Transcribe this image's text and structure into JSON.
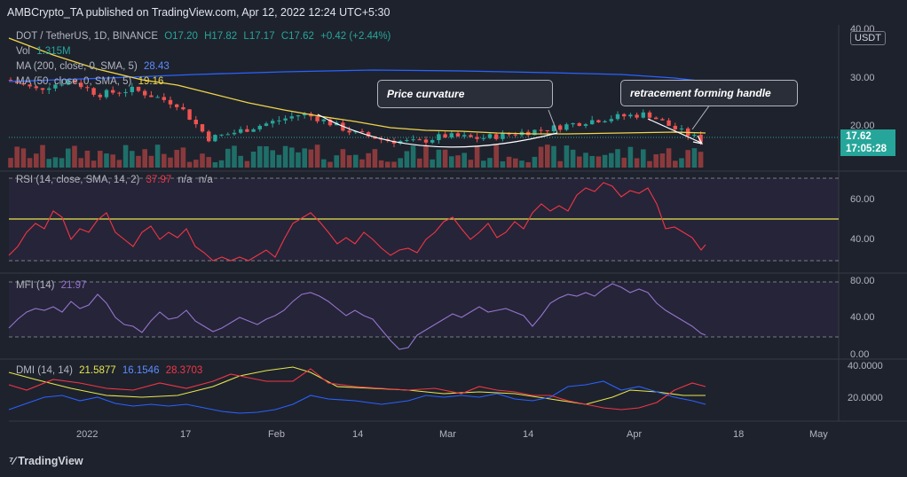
{
  "header": {
    "publish_line": "AMBCrypto_TA published on TradingView.com, Apr 12, 2022 12:24 UTC+5:30"
  },
  "legend": {
    "symbol": "DOT / TetherUS, 1D, BINANCE",
    "open": "O17.20",
    "high": "H17.82",
    "low": "L17.17",
    "close": "C17.62",
    "change": "+0.42 (+2.44%)",
    "vol_label": "Vol",
    "vol_value": "1.315M",
    "ma200_label": "MA (200, close, 0, SMA, 5)",
    "ma200_value": "28.43",
    "ma50_label": "MA (50, close, 0, SMA, 5)",
    "ma50_value": "19.16"
  },
  "indicators": {
    "rsi_label": "RSI (14, close, SMA, 14, 2)",
    "rsi_value": "37.97",
    "rsi_na1": "n/a",
    "rsi_na2": "n/a",
    "mfi_label": "MFI (14)",
    "mfi_value": "21.97",
    "dmi_label": "DMI (14, 14)",
    "dmi_adx": "21.5877",
    "dmi_plus": "16.1546",
    "dmi_minus": "28.3703"
  },
  "price_axis": {
    "currency": "USDT",
    "ticks": [
      "40.00",
      "30.00",
      "20.00"
    ],
    "last_price": "17.62",
    "countdown": "17:05:28"
  },
  "rsi_axis": {
    "ticks": [
      "60.00",
      "40.00"
    ]
  },
  "mfi_axis": {
    "ticks": [
      "80.00",
      "40.00",
      "0.00"
    ]
  },
  "dmi_axis": {
    "ticks": [
      "40.0000",
      "20.0000"
    ]
  },
  "time_axis": {
    "ticks": [
      "2022",
      "17",
      "Feb",
      "14",
      "Mar",
      "14",
      "Apr",
      "18",
      "May"
    ]
  },
  "annotations": {
    "price_curvature": "Price curvature",
    "retracement": "retracement forming handle"
  },
  "footer": {
    "brand": "TradingView"
  },
  "colors": {
    "background": "#1e222d",
    "up": "#26a69a",
    "down": "#ef5350",
    "ma50": "#f0d54a",
    "ma200": "#2962ff",
    "rsi": "#f23645",
    "mfi": "#9575cd",
    "dmi_adx": "#e6e64c",
    "dmi_plus": "#2962ff",
    "dmi_minus": "#f23645"
  }
}
